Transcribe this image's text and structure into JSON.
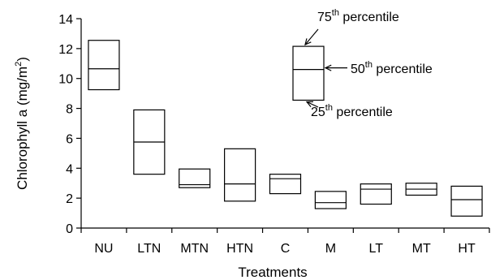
{
  "chart_data": {
    "type": "box",
    "xlabel": "Treatments",
    "ylabel": {
      "main": "Chlorophyll a (mg/m",
      "sup": "2",
      "end": ")"
    },
    "ylim": [
      0,
      14
    ],
    "yticks": [
      "0",
      "2",
      "4",
      "6",
      "8",
      "10",
      "12",
      "14"
    ],
    "categories": [
      "NU",
      "LTN",
      "MTN",
      "HTN",
      "C",
      "M",
      "LT",
      "MT",
      "HT"
    ],
    "series": [
      {
        "values": [
          {
            "p25": 9.25,
            "p50": 10.65,
            "p75": 12.55
          },
          {
            "p25": 3.6,
            "p50": 5.75,
            "p75": 7.9
          },
          {
            "p25": 2.7,
            "p50": 2.9,
            "p75": 3.95
          },
          {
            "p25": 1.8,
            "p50": 2.95,
            "p75": 5.3
          },
          {
            "p25": 2.3,
            "p50": 3.3,
            "p75": 3.6
          },
          {
            "p25": 1.3,
            "p50": 1.7,
            "p75": 2.45
          },
          {
            "p25": 1.6,
            "p50": 2.6,
            "p75": 2.95
          },
          {
            "p25": 2.2,
            "p50": 2.6,
            "p75": 3.0
          },
          {
            "p25": 0.8,
            "p50": 1.9,
            "p75": 2.8
          }
        ]
      }
    ],
    "legend": {
      "box": {
        "p25": 8.55,
        "p50": 10.6,
        "p75": 12.15
      },
      "p75": {
        "num": "75",
        "sup": "th",
        "text": " percentile"
      },
      "p50": {
        "num": "50",
        "sup": "th",
        "text": " percentile"
      },
      "p25": {
        "num": "25",
        "sup": "th",
        "text": " percentile"
      }
    },
    "grid": false
  }
}
